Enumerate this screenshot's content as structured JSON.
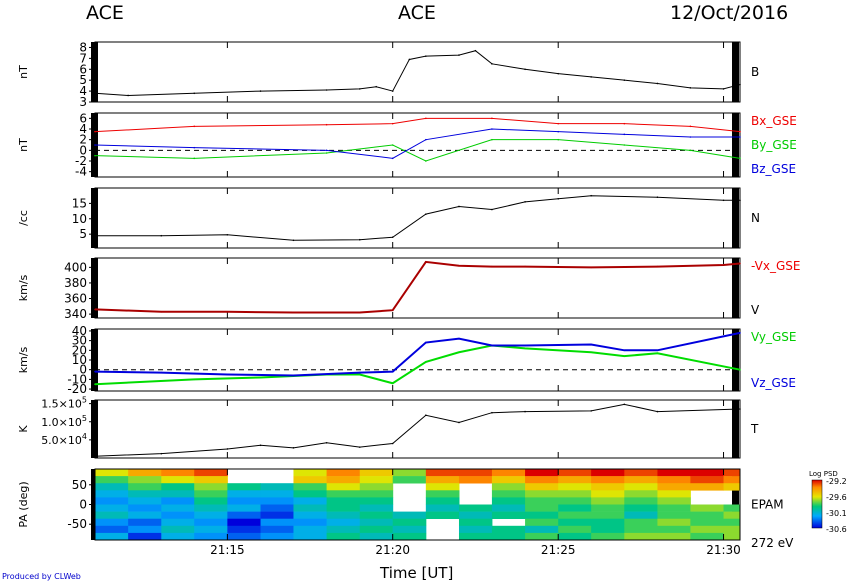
{
  "header": {
    "left_title": "ACE",
    "center_title": "ACE",
    "date": "12/Oct/2016"
  },
  "footer": {
    "credit": "Produced by CLWeb",
    "xlabel": "Time [UT]"
  },
  "colorbar": {
    "title": "Log PSD",
    "tick_labels": [
      "-29.2",
      "-29.6",
      "-30.1",
      "-30.6"
    ]
  },
  "chart_data": [
    {
      "type": "line",
      "panel": "B",
      "ylabel": "nT",
      "yticks": [
        "3",
        "4",
        "5",
        "6",
        "7",
        "8"
      ],
      "ylim": [
        3,
        8.5
      ],
      "series": [
        {
          "name": "B",
          "color": "#000000",
          "x": [
            21.1833,
            21.2,
            21.2333,
            21.2667,
            21.3,
            21.3167,
            21.325,
            21.3333,
            21.3417,
            21.35,
            21.3667,
            21.375,
            21.3833,
            21.4,
            21.4167,
            21.4333,
            21.45,
            21.4667,
            21.4833,
            21.5,
            21.5083
          ],
          "y": [
            3.8,
            3.6,
            3.8,
            4.0,
            4.1,
            4.2,
            4.4,
            4.0,
            6.9,
            7.2,
            7.3,
            7.7,
            6.5,
            6.0,
            5.6,
            5.3,
            5.0,
            4.7,
            4.3,
            4.2,
            4.6
          ]
        }
      ],
      "right_labels": [
        {
          "text": "B",
          "color": "#000000"
        }
      ]
    },
    {
      "type": "line",
      "panel": "B_GSE",
      "ylabel": "nT",
      "yticks": [
        "-4",
        "-2",
        "0",
        "2",
        "4",
        "6"
      ],
      "ylim": [
        -5,
        7
      ],
      "zero_line": true,
      "series": [
        {
          "name": "Bx_GSE",
          "color": "#ee0000",
          "x": [
            21.1833,
            21.2333,
            21.3,
            21.3333,
            21.35,
            21.3833,
            21.4167,
            21.45,
            21.4833,
            21.5083
          ],
          "y": [
            3.5,
            4.5,
            4.8,
            5.0,
            6.0,
            6.0,
            5.0,
            5.0,
            4.5,
            3.5
          ]
        },
        {
          "name": "By_GSE",
          "color": "#00cc00",
          "x": [
            21.1833,
            21.2333,
            21.3,
            21.3333,
            21.35,
            21.3833,
            21.4167,
            21.45,
            21.4833,
            21.5083
          ],
          "y": [
            -1.0,
            -1.5,
            -0.5,
            1.0,
            -2.0,
            2.0,
            2.0,
            1.0,
            0.0,
            -1.5
          ]
        },
        {
          "name": "Bz_GSE",
          "color": "#0000dd",
          "x": [
            21.1833,
            21.2333,
            21.3,
            21.3333,
            21.35,
            21.3833,
            21.4167,
            21.45,
            21.4833,
            21.5083
          ],
          "y": [
            1.0,
            0.5,
            0.0,
            -1.5,
            2.0,
            4.0,
            3.5,
            3.0,
            2.5,
            2.5
          ]
        }
      ],
      "right_labels": [
        {
          "text": "Bx_GSE",
          "color": "#ee0000"
        },
        {
          "text": "By_GSE",
          "color": "#00cc00"
        },
        {
          "text": "Bz_GSE",
          "color": "#0000dd"
        }
      ]
    },
    {
      "type": "line",
      "panel": "N",
      "ylabel": "/cc",
      "yticks": [
        "5",
        "10",
        "15"
      ],
      "ylim": [
        0.5,
        20
      ],
      "series": [
        {
          "name": "N",
          "color": "#000000",
          "x": [
            21.1833,
            21.2167,
            21.25,
            21.2833,
            21.3167,
            21.3333,
            21.35,
            21.3667,
            21.3833,
            21.4,
            21.4167,
            21.4333,
            21.4667,
            21.5,
            21.5083
          ],
          "y": [
            4.5,
            4.5,
            4.8,
            3.0,
            3.2,
            4.0,
            11.5,
            14.0,
            13.0,
            15.5,
            16.5,
            17.5,
            17.0,
            16.0,
            16.0
          ]
        }
      ],
      "right_labels": [
        {
          "text": "N",
          "color": "#000000"
        }
      ]
    },
    {
      "type": "line",
      "panel": "V",
      "ylabel": "km/s",
      "yticks": [
        "340",
        "360",
        "380",
        "400"
      ],
      "ylim": [
        335,
        412
      ],
      "series": [
        {
          "name": "-Vx_GSE",
          "color": "#aa0000",
          "x": [
            21.1833,
            21.2167,
            21.25,
            21.2833,
            21.3167,
            21.3333,
            21.35,
            21.3667,
            21.3833,
            21.4,
            21.4333,
            21.4667,
            21.5,
            21.5083
          ],
          "y": [
            346,
            343,
            343,
            342,
            342,
            345,
            407,
            402,
            401,
            401,
            400,
            401,
            403,
            405
          ]
        }
      ],
      "right_labels": [
        {
          "text": "-Vx_GSE",
          "color": "#ee0000"
        },
        {
          "text": "V",
          "color": "#000000"
        }
      ]
    },
    {
      "type": "line",
      "panel": "Vyz",
      "ylabel": "km/s",
      "yticks": [
        "-20",
        "-10",
        "0",
        "10",
        "20",
        "30",
        "40"
      ],
      "ylim": [
        -22,
        42
      ],
      "zero_line": true,
      "series": [
        {
          "name": "Vy_GSE",
          "color": "#00dd00",
          "x": [
            21.1833,
            21.2333,
            21.2667,
            21.3,
            21.3167,
            21.3333,
            21.35,
            21.3667,
            21.3833,
            21.4,
            21.4333,
            21.45,
            21.4667,
            21.5083
          ],
          "y": [
            -15,
            -10,
            -8,
            -5,
            -5,
            -14,
            8,
            18,
            25,
            22,
            18,
            14,
            17,
            0
          ]
        },
        {
          "name": "Vz_GSE",
          "color": "#0000dd",
          "x": [
            21.1833,
            21.2167,
            21.25,
            21.2833,
            21.3167,
            21.3333,
            21.35,
            21.3667,
            21.3833,
            21.4,
            21.4333,
            21.45,
            21.4667,
            21.5083
          ],
          "y": [
            -2,
            -3,
            -5,
            -6,
            -3,
            -2,
            28,
            32,
            25,
            25,
            26,
            20,
            20,
            38
          ]
        }
      ],
      "right_labels": [
        {
          "text": "Vy_GSE",
          "color": "#00cc00"
        },
        {
          "text": "Vz_GSE",
          "color": "#0000dd"
        }
      ]
    },
    {
      "type": "line",
      "panel": "T",
      "ylabel": "K",
      "ylim": [
        0,
        160000
      ],
      "yticks": [
        {
          "value": 50000,
          "base": "5.0×10",
          "exp": "4"
        },
        {
          "value": 100000,
          "base": "1.0×10",
          "exp": "5"
        },
        {
          "value": 150000,
          "base": "1.5×10",
          "exp": "5"
        }
      ],
      "series": [
        {
          "name": "T",
          "color": "#000000",
          "x": [
            21.1833,
            21.2167,
            21.25,
            21.2667,
            21.2833,
            21.3,
            21.3167,
            21.3333,
            21.35,
            21.3667,
            21.3833,
            21.4,
            21.4333,
            21.45,
            21.4667,
            21.5083
          ],
          "y": [
            5000,
            12000,
            25000,
            35000,
            28000,
            42000,
            30000,
            40000,
            118000,
            98000,
            125000,
            128000,
            130000,
            148000,
            128000,
            135000
          ]
        }
      ],
      "right_labels": [
        {
          "text": "T",
          "color": "#000000"
        }
      ]
    },
    {
      "type": "heatmap",
      "panel": "PA",
      "ylabel": "PA (deg)",
      "yticks": [
        "-50",
        "0",
        "50"
      ],
      "ylim": [
        -90,
        90
      ],
      "instrument_label": "EPAM",
      "energy_label": "272 eV",
      "zlim": [
        -30.6,
        -29.2
      ],
      "x_edges": [
        21.1833,
        21.2,
        21.2167,
        21.2333,
        21.25,
        21.2667,
        21.2833,
        21.3,
        21.3167,
        21.3333,
        21.35,
        21.3667,
        21.3833,
        21.4,
        21.4167,
        21.4333,
        21.45,
        21.4667,
        21.4833,
        21.5,
        21.5083
      ],
      "pa_bins": 10,
      "values": [
        [
          -29.7,
          -29.5,
          -29.4,
          -29.3,
          -29.5,
          -29.6,
          -29.7,
          -29.4,
          -29.6,
          -29.8,
          -29.3,
          -29.3,
          -29.4,
          -29.2,
          -29.3,
          -29.2,
          -29.3,
          -29.2,
          -29.2,
          -29.3
        ],
        [
          -29.9,
          -29.8,
          -29.7,
          -29.6,
          -29.8,
          -29.9,
          -29.6,
          -29.5,
          -29.7,
          -29.9,
          -29.5,
          -29.4,
          -29.6,
          -29.4,
          -29.5,
          -29.4,
          -29.5,
          -29.4,
          -29.3,
          -29.4
        ],
        [
          -30.1,
          -29.9,
          -30.0,
          -29.8,
          -30.0,
          -30.1,
          -29.9,
          -29.7,
          -29.8,
          -30.0,
          -29.7,
          -29.6,
          -29.8,
          -29.6,
          -29.7,
          -29.6,
          -29.7,
          -29.5,
          -29.5,
          -29.6
        ],
        [
          -30.2,
          -30.1,
          -30.1,
          -29.9,
          -30.2,
          -30.2,
          -30.0,
          -29.9,
          -29.9,
          -30.1,
          -29.9,
          -29.8,
          -29.9,
          -29.8,
          -29.8,
          -29.7,
          -29.8,
          -29.7,
          -29.6,
          -29.7
        ],
        [
          -30.3,
          -30.2,
          -30.3,
          -30.0,
          -30.3,
          -30.3,
          -30.2,
          -30.0,
          -30.0,
          -30.2,
          -30.0,
          -29.9,
          -30.0,
          -29.9,
          -29.9,
          -29.8,
          -29.9,
          -29.8,
          -29.7,
          -29.8
        ],
        [
          -30.2,
          -30.3,
          -30.2,
          -30.1,
          -30.2,
          -30.4,
          -30.1,
          -30.0,
          -30.1,
          -30.2,
          -30.1,
          -30.0,
          -30.1,
          -29.9,
          -30.0,
          -29.9,
          -30.0,
          -29.9,
          -29.8,
          -29.9
        ],
        [
          -30.1,
          -30.2,
          -30.3,
          -30.2,
          -30.4,
          -30.5,
          -30.2,
          -30.1,
          -30.0,
          -30.1,
          -30.0,
          -30.1,
          -30.0,
          -30.0,
          -29.9,
          -29.9,
          -30.1,
          -29.9,
          -29.9,
          -29.8
        ],
        [
          -30.3,
          -30.4,
          -30.2,
          -30.3,
          -30.6,
          -30.3,
          -30.3,
          -30.2,
          -30.1,
          -30.0,
          -30.1,
          -30.0,
          -30.1,
          -29.9,
          -30.0,
          -30.0,
          -29.9,
          -29.8,
          -29.9,
          -29.9
        ],
        [
          -30.4,
          -30.3,
          -30.1,
          -30.2,
          -30.5,
          -30.4,
          -30.2,
          -30.1,
          -30.0,
          -30.1,
          -30.0,
          -30.1,
          -30.0,
          -30.1,
          -29.9,
          -30.0,
          -29.9,
          -29.9,
          -29.8,
          -29.8
        ],
        [
          -30.2,
          -30.5,
          -30.2,
          -30.3,
          -30.4,
          -30.3,
          -30.2,
          -30.0,
          -30.1,
          -30.0,
          -29.9,
          -30.0,
          -30.0,
          -29.9,
          -30.0,
          -29.9,
          -29.8,
          -29.8,
          -29.9,
          -29.8
        ]
      ],
      "gaps": [
        [
          4,
          0
        ],
        [
          4,
          1
        ],
        [
          5,
          0
        ],
        [
          5,
          1
        ],
        [
          9,
          2
        ],
        [
          9,
          3
        ],
        [
          9,
          4
        ],
        [
          9,
          5
        ],
        [
          11,
          2
        ],
        [
          11,
          3
        ],
        [
          11,
          4
        ],
        [
          10,
          7
        ],
        [
          10,
          8
        ],
        [
          10,
          9
        ],
        [
          12,
          7
        ],
        [
          18,
          3
        ],
        [
          18,
          4
        ],
        [
          19,
          3
        ],
        [
          19,
          4
        ]
      ],
      "right_labels": [
        {
          "text": "EPAM",
          "color": "#000000"
        }
      ]
    }
  ],
  "xaxis": {
    "xlim": [
      21.1833,
      21.5083
    ],
    "major_ticks": [
      {
        "value": 21.25,
        "label": "21:15"
      },
      {
        "value": 21.3333,
        "label": "21:20"
      },
      {
        "value": 21.4167,
        "label": "21:25"
      },
      {
        "value": 21.5,
        "label": "21:30"
      }
    ]
  }
}
